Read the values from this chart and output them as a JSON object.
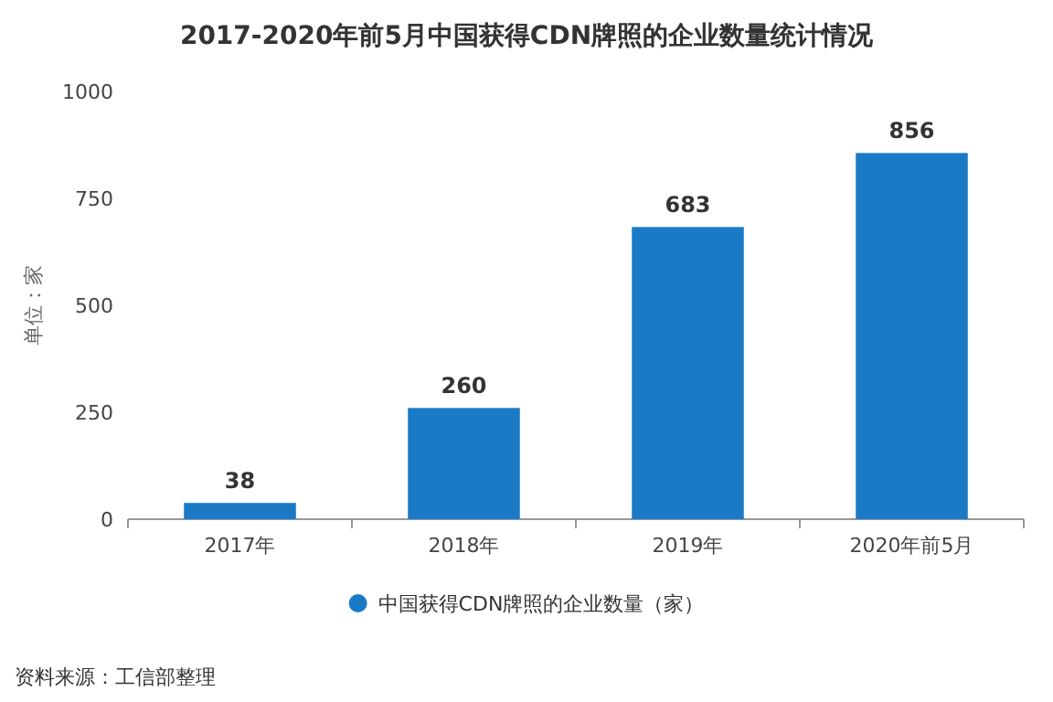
{
  "chart_data": {
    "type": "bar",
    "title": "2017-2020年前5月中国获得CDN牌照的企业数量统计情况",
    "ylabel": "单位：家",
    "categories": [
      "2017年",
      "2018年",
      "2019年",
      "2020年前5月"
    ],
    "series": [
      {
        "name": "中国获得CDN牌照的企业数量（家）",
        "color": "#1a7ac6",
        "values": [
          38,
          260,
          683,
          856
        ]
      }
    ],
    "ylim": [
      0,
      1000
    ],
    "yticks": [
      0,
      250,
      500,
      750,
      1000
    ],
    "data_labels": true,
    "legend": "bottom",
    "annotations": [
      "资料来源：工信部整理"
    ]
  }
}
